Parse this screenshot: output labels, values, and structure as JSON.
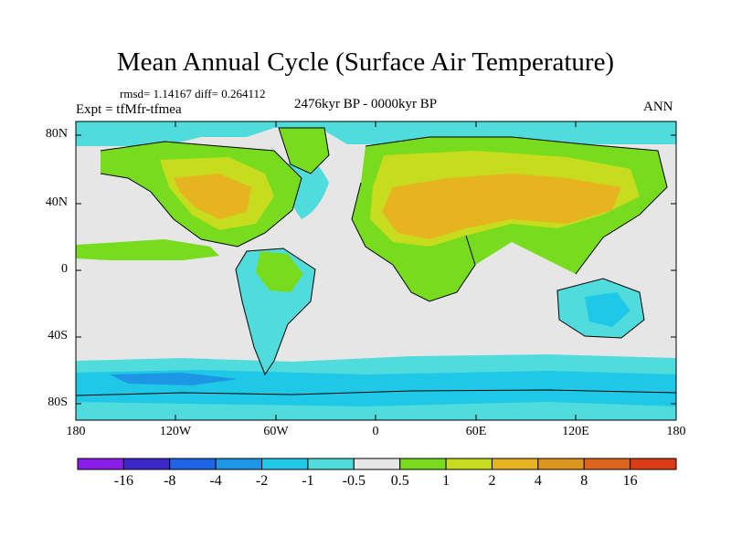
{
  "title": "Mean Annual Cycle (Surface Air Temperature)",
  "stats": "rmsd= 1.14167 diff= 0.264112",
  "experiment": "Expt = tfMfr-tfmea",
  "period": "2476kyr BP - 0000kyr BP",
  "season": "ANN",
  "lat_labels": [
    "80N",
    "40N",
    "0",
    "40S",
    "80S"
  ],
  "lon_labels": [
    "180",
    "120W",
    "60W",
    "0",
    "60E",
    "120E",
    "180"
  ],
  "colorbar": {
    "colors": [
      "#8a1ee8",
      "#3c28c8",
      "#1e64e6",
      "#1e96e6",
      "#1ec8e6",
      "#50dcdc",
      "#e6e6e6",
      "#78dc1e",
      "#c8dc1e",
      "#e6b41e",
      "#dc961e",
      "#dc641e",
      "#dc3c14"
    ],
    "labels": [
      "-16",
      "-8",
      "-4",
      "-2",
      "-1",
      "-0.5",
      "0.5",
      "1",
      "2",
      "4",
      "8",
      "16"
    ]
  },
  "map_colors": {
    "neutral": "#e6e6e6",
    "cyan": "#50dcdc",
    "light_blue": "#1ec8e6",
    "blue": "#1e96e6",
    "green": "#78dc1e",
    "yellow_green": "#c8dc1e",
    "orange": "#e6b41e"
  }
}
